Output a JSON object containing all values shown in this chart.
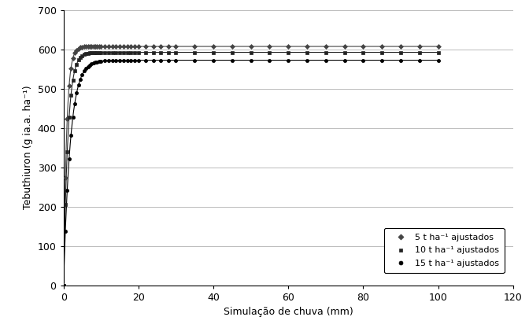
{
  "title": "",
  "xlabel": "Simulação de chuva (mm)",
  "ylabel": "Tebuthiuron (g ia.a. ha⁻¹)",
  "xlim": [
    0,
    120
  ],
  "ylim": [
    0,
    700
  ],
  "xticks": [
    0,
    20,
    40,
    60,
    80,
    100,
    120
  ],
  "yticks": [
    0,
    100,
    200,
    300,
    400,
    500,
    600,
    700
  ],
  "series": [
    {
      "label": "5 t ha⁻¹ ajustados",
      "asymptote": 607,
      "k": 1.2,
      "color": "#444444",
      "marker": "D",
      "markersize": 3,
      "linewidth": 0.8
    },
    {
      "label": "10 t ha⁻¹ ajustados",
      "asymptote": 592,
      "k": 0.85,
      "color": "#222222",
      "marker": "s",
      "markersize": 3,
      "linewidth": 0.8
    },
    {
      "label": "15 t ha⁻¹ ajustados",
      "asymptote": 572,
      "k": 0.55,
      "color": "#000000",
      "marker": "o",
      "markersize": 3,
      "linewidth": 0.8
    }
  ],
  "marker_x_dense": [
    0.0,
    0.5,
    1.0,
    1.5,
    2.0,
    2.5,
    3.0,
    3.5,
    4.0,
    4.5,
    5.0,
    5.5,
    6.0,
    6.5,
    7.0,
    7.5,
    8.0,
    8.5,
    9.0,
    9.5,
    10.0,
    11.0,
    12.0,
    13.0,
    14.0,
    15.0,
    16.0,
    17.0,
    18.0,
    19.0,
    20.0,
    22.0,
    24.0,
    26.0,
    28.0,
    30.0,
    35.0,
    40.0,
    45.0,
    50.0,
    55.0,
    60.0,
    65.0,
    70.0,
    75.0,
    80.0,
    85.0,
    90.0,
    95.0,
    100.0
  ],
  "background_color": "#ffffff",
  "grid_color": "#bbbbbb",
  "font_size": 9,
  "legend_fontsize": 8
}
